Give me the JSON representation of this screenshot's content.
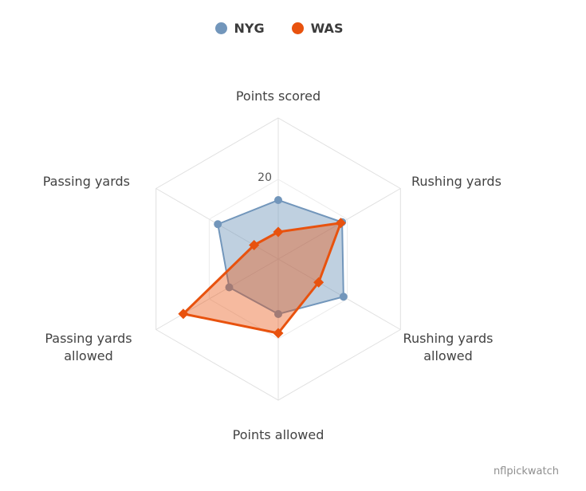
{
  "legend": {
    "items": [
      {
        "label": "NYG"
      },
      {
        "label": "WAS"
      }
    ]
  },
  "chart_data": {
    "type": "radar",
    "axes": [
      "Points scored",
      "Rushing yards",
      "Rushing yards allowed",
      "Points allowed",
      "Passing yards allowed",
      "Passing yards"
    ],
    "series": [
      {
        "name": "NYG",
        "color": "#7296bb",
        "marker": "circle",
        "values": [
          14.8,
          18.5,
          18.9,
          13.8,
          14.2,
          17.5
        ]
      },
      {
        "name": "WAS",
        "color": "#e8520e",
        "marker": "diamond",
        "values": [
          6.8,
          18.1,
          11.7,
          18.6,
          27.5,
          7.0
        ]
      }
    ],
    "radial_axis": {
      "tick_label": "20",
      "tick_value": 20,
      "max": 35.4
    },
    "grid_color": "#e0e0e0"
  },
  "watermark": "nflpickwatch"
}
